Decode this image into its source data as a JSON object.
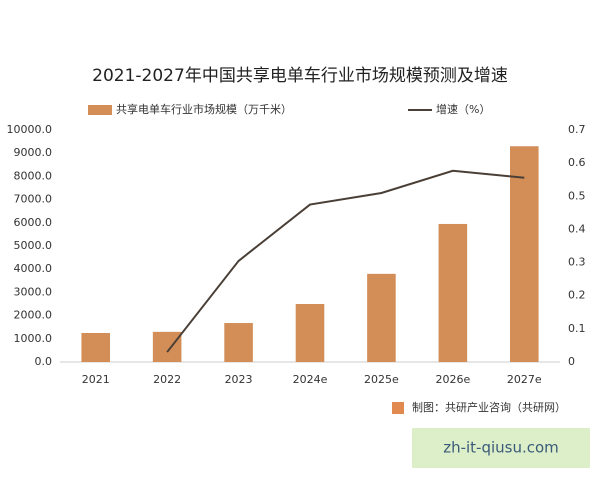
{
  "chart_data": {
    "type": "bar_line",
    "title": "2021-2027年中国共享电单车行业市场规模预测及增速",
    "categories": [
      "2021",
      "2022",
      "2023",
      "2024e",
      "2025e",
      "2026e",
      "2027e"
    ],
    "series": [
      {
        "name": "共享电单车行业市场规模（万千米）",
        "type": "bar",
        "color": "#d38e58",
        "values": [
          1250,
          1300,
          1680,
          2500,
          3800,
          5950,
          9300
        ]
      },
      {
        "name": "增速（%）",
        "type": "line",
        "axis": "y2",
        "color": "#4a3f36",
        "values": [
          null,
          0.03,
          0.305,
          0.475,
          0.51,
          0.577,
          0.556
        ]
      }
    ],
    "ylim": [
      0,
      10000
    ],
    "yticks": [
      {
        "value": 0,
        "label": "0.0"
      },
      {
        "value": 1000,
        "label": "1000.0"
      },
      {
        "value": 2000,
        "label": "2000.0"
      },
      {
        "value": 3000,
        "label": "3000.0"
      },
      {
        "value": 4000,
        "label": "4000.0"
      },
      {
        "value": 5000,
        "label": "5000.0"
      },
      {
        "value": 6000,
        "label": "6000.0"
      },
      {
        "value": 7000,
        "label": "7000.0"
      },
      {
        "value": 8000,
        "label": "8000.0"
      },
      {
        "value": 9000,
        "label": "9000.0"
      },
      {
        "value": 10000,
        "label": "10000.0"
      }
    ],
    "y2lim": [
      0,
      0.7
    ],
    "y2ticks": [
      0,
      0.1,
      0.2,
      0.3,
      0.4,
      0.5,
      0.6,
      0.7
    ],
    "grid": false,
    "legend": "top"
  },
  "source": "制图：共研产业咨询（共研网）",
  "watermark": "zh-it-qiusu.com"
}
